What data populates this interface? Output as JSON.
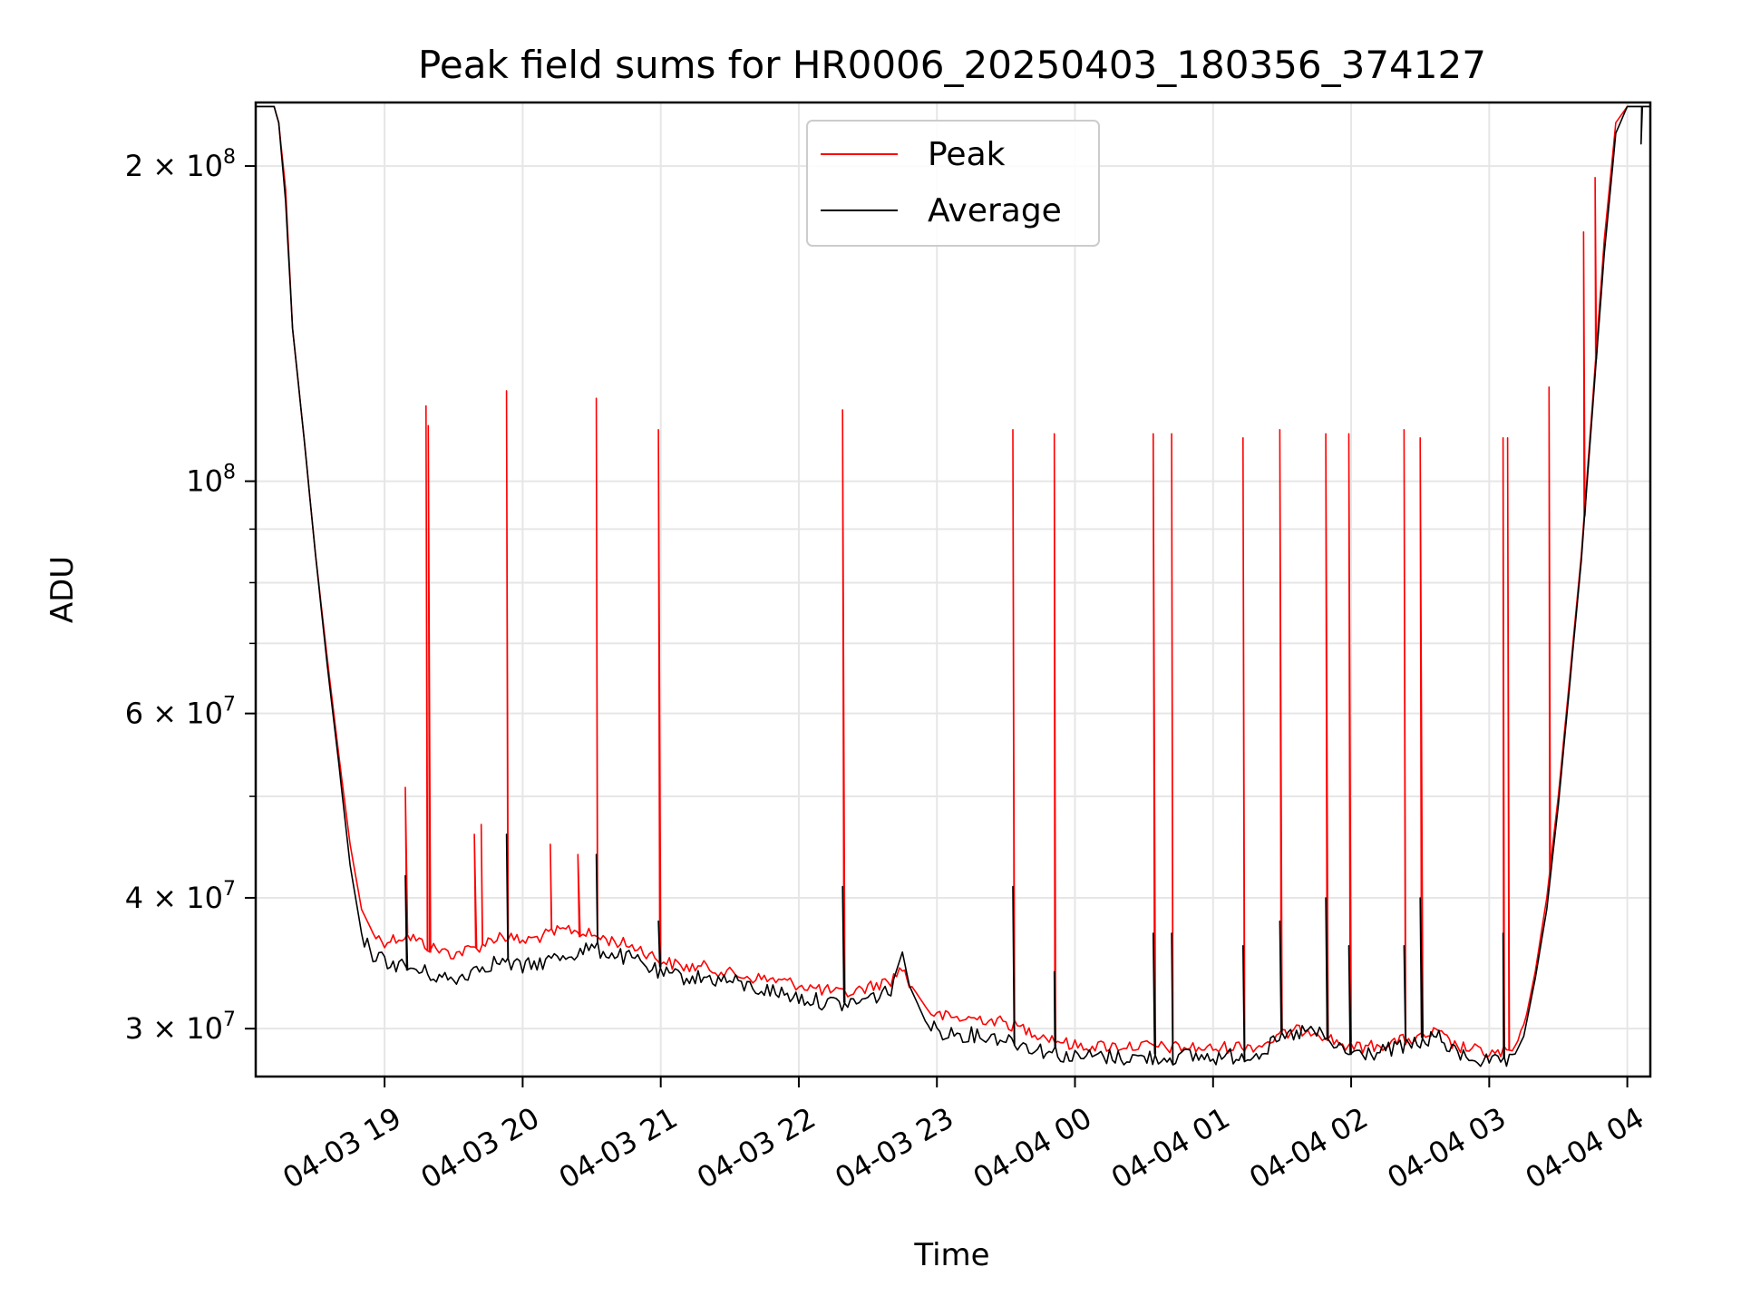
{
  "chart_data": {
    "type": "line",
    "title": "Peak field sums for HR0006_20250403_180356_374127",
    "xlabel": "Time",
    "ylabel": "ADU",
    "yscale": "log",
    "ylim": [
      27000000,
      230000000
    ],
    "xlim": [
      "2025-04-03 18:04",
      "2025-04-04 04:10"
    ],
    "x_ticks": [
      {
        "t": "2025-04-03 19:00",
        "label": "04-03 19"
      },
      {
        "t": "2025-04-03 20:00",
        "label": "04-03 20"
      },
      {
        "t": "2025-04-03 21:00",
        "label": "04-03 21"
      },
      {
        "t": "2025-04-03 22:00",
        "label": "04-03 22"
      },
      {
        "t": "2025-04-03 23:00",
        "label": "04-03 23"
      },
      {
        "t": "2025-04-04 00:00",
        "label": "04-04 00"
      },
      {
        "t": "2025-04-04 01:00",
        "label": "04-04 01"
      },
      {
        "t": "2025-04-04 02:00",
        "label": "04-04 02"
      },
      {
        "t": "2025-04-04 03:00",
        "label": "04-04 03"
      },
      {
        "t": "2025-04-04 04:00",
        "label": "04-04 04"
      }
    ],
    "y_ticks": [
      {
        "v": 30000000,
        "label": "3 × 10⁷",
        "mant": "3",
        "exp": "7"
      },
      {
        "v": 40000000,
        "label": "4 × 10⁷",
        "mant": "4",
        "exp": "7"
      },
      {
        "v": 60000000,
        "label": "6 × 10⁷",
        "mant": "6",
        "exp": "7"
      },
      {
        "v": 100000000,
        "label": "10⁸",
        "mant": "",
        "exp": "8"
      },
      {
        "v": 200000000,
        "label": "2 × 10⁸",
        "mant": "2",
        "exp": "8"
      }
    ],
    "y_minor_ticks": [
      50000000,
      70000000,
      80000000,
      90000000
    ],
    "grid": true,
    "legend_position": "top-center",
    "series": [
      {
        "name": "Peak",
        "color": "#ff0000",
        "points": [
          [
            "2025-04-03 18:04",
            228000000
          ],
          [
            "2025-04-03 18:12",
            228000000
          ],
          [
            "2025-04-03 18:14",
            220000000
          ],
          [
            "2025-04-03 18:17",
            190000000
          ],
          [
            "2025-04-03 18:20",
            140000000
          ],
          [
            "2025-04-03 18:25",
            110000000
          ],
          [
            "2025-04-03 18:30",
            85000000
          ],
          [
            "2025-04-03 18:35",
            68000000
          ],
          [
            "2025-04-03 18:40",
            55000000
          ],
          [
            "2025-04-03 18:45",
            45000000
          ],
          [
            "2025-04-03 18:50",
            39000000
          ],
          [
            "2025-04-03 18:55",
            37000000
          ],
          [
            "2025-04-03 19:00",
            36500000
          ],
          [
            "2025-04-03 19:10",
            37000000
          ],
          [
            "2025-04-03 19:20",
            36000000
          ],
          [
            "2025-04-03 19:30",
            35500000
          ],
          [
            "2025-04-03 19:40",
            36000000
          ],
          [
            "2025-04-03 19:50",
            37000000
          ],
          [
            "2025-04-03 20:00",
            36500000
          ],
          [
            "2025-04-03 20:10",
            37000000
          ],
          [
            "2025-04-03 20:20",
            37500000
          ],
          [
            "2025-04-03 20:30",
            37000000
          ],
          [
            "2025-04-03 20:40",
            36500000
          ],
          [
            "2025-04-03 20:50",
            36000000
          ],
          [
            "2025-04-03 21:00",
            35000000
          ],
          [
            "2025-04-03 21:10",
            34500000
          ],
          [
            "2025-04-03 21:20",
            34500000
          ],
          [
            "2025-04-03 21:30",
            34000000
          ],
          [
            "2025-04-03 21:40",
            33700000
          ],
          [
            "2025-04-03 21:50",
            33500000
          ],
          [
            "2025-04-03 22:00",
            33200000
          ],
          [
            "2025-04-03 22:10",
            32800000
          ],
          [
            "2025-04-03 22:20",
            32500000
          ],
          [
            "2025-04-03 22:30",
            33000000
          ],
          [
            "2025-04-03 22:40",
            33500000
          ],
          [
            "2025-04-03 22:45",
            34500000
          ],
          [
            "2025-04-03 22:48",
            33200000
          ],
          [
            "2025-04-03 22:55",
            31500000
          ],
          [
            "2025-04-03 23:00",
            31000000
          ],
          [
            "2025-04-03 23:10",
            30800000
          ],
          [
            "2025-04-03 23:20",
            30800000
          ],
          [
            "2025-04-03 23:30",
            30500000
          ],
          [
            "2025-04-03 23:40",
            30000000
          ],
          [
            "2025-04-03 23:50",
            29500000
          ],
          [
            "2025-04-04 00:00",
            29000000
          ],
          [
            "2025-04-04 00:10",
            29000000
          ],
          [
            "2025-04-04 00:20",
            29000000
          ],
          [
            "2025-04-04 00:30",
            29000000
          ],
          [
            "2025-04-04 00:40",
            28900000
          ],
          [
            "2025-04-04 00:50",
            28900000
          ],
          [
            "2025-04-04 01:00",
            28800000
          ],
          [
            "2025-04-04 01:10",
            29000000
          ],
          [
            "2025-04-04 01:20",
            29000000
          ],
          [
            "2025-04-04 01:30",
            29700000
          ],
          [
            "2025-04-04 01:40",
            30100000
          ],
          [
            "2025-04-04 01:45",
            30000000
          ],
          [
            "2025-04-04 01:50",
            29500000
          ],
          [
            "2025-04-04 02:00",
            28900000
          ],
          [
            "2025-04-04 02:10",
            29000000
          ],
          [
            "2025-04-04 02:20",
            29300000
          ],
          [
            "2025-04-04 02:30",
            29500000
          ],
          [
            "2025-04-04 02:37",
            29900000
          ],
          [
            "2025-04-04 02:45",
            29000000
          ],
          [
            "2025-04-04 02:55",
            28700000
          ],
          [
            "2025-04-04 03:00",
            28500000
          ],
          [
            "2025-04-04 03:10",
            28600000
          ],
          [
            "2025-04-04 03:15",
            30000000
          ],
          [
            "2025-04-04 03:20",
            34000000
          ],
          [
            "2025-04-04 03:25",
            40000000
          ],
          [
            "2025-04-04 03:30",
            50000000
          ],
          [
            "2025-04-04 03:35",
            65000000
          ],
          [
            "2025-04-04 03:40",
            85000000
          ],
          [
            "2025-04-04 03:45",
            120000000
          ],
          [
            "2025-04-04 03:50",
            170000000
          ],
          [
            "2025-04-04 03:55",
            220000000
          ],
          [
            "2025-04-04 04:00",
            228000000
          ],
          [
            "2025-04-04 04:10",
            228000000
          ]
        ],
        "spikes": [
          [
            "2025-04-03 18:20",
            190000000
          ],
          [
            "2025-04-03 18:55",
            115000000
          ],
          [
            "2025-04-03 19:09",
            51000000
          ],
          [
            "2025-04-03 19:18",
            118000000
          ],
          [
            "2025-04-03 19:19",
            113000000
          ],
          [
            "2025-04-03 19:20",
            118000000
          ],
          [
            "2025-04-03 19:39",
            46000000
          ],
          [
            "2025-04-03 19:42",
            47000000
          ],
          [
            "2025-04-03 19:53",
            122000000
          ],
          [
            "2025-04-03 20:12",
            45000000
          ],
          [
            "2025-04-03 20:24",
            44000000
          ],
          [
            "2025-04-03 20:32",
            120000000
          ],
          [
            "2025-04-03 20:59",
            112000000
          ],
          [
            "2025-04-03 21:10",
            118000000
          ],
          [
            "2025-04-03 22:19",
            117000000
          ],
          [
            "2025-04-03 23:33",
            112000000
          ],
          [
            "2025-04-03 23:51",
            111000000
          ],
          [
            "2025-04-04 00:34",
            111000000
          ],
          [
            "2025-04-04 00:42",
            111000000
          ],
          [
            "2025-04-04 01:13",
            110000000
          ],
          [
            "2025-04-04 01:29",
            112000000
          ],
          [
            "2025-04-04 01:49",
            111000000
          ],
          [
            "2025-04-04 01:59",
            111000000
          ],
          [
            "2025-04-04 02:23",
            112000000
          ],
          [
            "2025-04-04 02:30",
            110000000
          ],
          [
            "2025-04-04 03:06",
            110000000
          ],
          [
            "2025-04-04 03:08",
            110000000
          ],
          [
            "2025-04-04 03:26",
            123000000
          ],
          [
            "2025-04-04 03:30",
            132000000
          ],
          [
            "2025-04-04 03:41",
            173000000
          ],
          [
            "2025-04-04 03:46",
            195000000
          ]
        ]
      },
      {
        "name": "Average",
        "color": "#000000",
        "points": [
          [
            "2025-04-03 18:04",
            228000000
          ],
          [
            "2025-04-03 18:12",
            228000000
          ],
          [
            "2025-04-03 18:14",
            220000000
          ],
          [
            "2025-04-03 18:17",
            185000000
          ],
          [
            "2025-04-03 18:20",
            140000000
          ],
          [
            "2025-04-03 18:25",
            110000000
          ],
          [
            "2025-04-03 18:30",
            85000000
          ],
          [
            "2025-04-03 18:35",
            67000000
          ],
          [
            "2025-04-03 18:40",
            54000000
          ],
          [
            "2025-04-03 18:45",
            43000000
          ],
          [
            "2025-04-03 18:50",
            37000000
          ],
          [
            "2025-04-03 18:55",
            35500000
          ],
          [
            "2025-04-03 19:00",
            35000000
          ],
          [
            "2025-04-03 19:10",
            34500000
          ],
          [
            "2025-04-03 19:20",
            34000000
          ],
          [
            "2025-04-03 19:30",
            33500000
          ],
          [
            "2025-04-03 19:40",
            34500000
          ],
          [
            "2025-04-03 19:50",
            35000000
          ],
          [
            "2025-04-03 20:00",
            34500000
          ],
          [
            "2025-04-03 20:10",
            35000000
          ],
          [
            "2025-04-03 20:20",
            35500000
          ],
          [
            "2025-04-03 20:30",
            36000000
          ],
          [
            "2025-04-03 20:40",
            35500000
          ],
          [
            "2025-04-03 20:50",
            35000000
          ],
          [
            "2025-04-03 21:00",
            34000000
          ],
          [
            "2025-04-03 21:10",
            33800000
          ],
          [
            "2025-04-03 21:20",
            33700000
          ],
          [
            "2025-04-03 21:30",
            33500000
          ],
          [
            "2025-04-03 21:40",
            33000000
          ],
          [
            "2025-04-03 21:50",
            32700000
          ],
          [
            "2025-04-03 22:00",
            32300000
          ],
          [
            "2025-04-03 22:10",
            32000000
          ],
          [
            "2025-04-03 22:20",
            31800000
          ],
          [
            "2025-04-03 22:30",
            32200000
          ],
          [
            "2025-04-03 22:40",
            32800000
          ],
          [
            "2025-04-03 22:45",
            35500000
          ],
          [
            "2025-04-03 22:48",
            33000000
          ],
          [
            "2025-04-03 22:55",
            30500000
          ],
          [
            "2025-04-03 23:00",
            30000000
          ],
          [
            "2025-04-03 23:10",
            29800000
          ],
          [
            "2025-04-03 23:20",
            29700000
          ],
          [
            "2025-04-03 23:30",
            29500000
          ],
          [
            "2025-04-03 23:40",
            29000000
          ],
          [
            "2025-04-03 23:50",
            28600000
          ],
          [
            "2025-04-04 00:00",
            28300000
          ],
          [
            "2025-04-04 00:10",
            28400000
          ],
          [
            "2025-04-04 00:20",
            28300000
          ],
          [
            "2025-04-04 00:30",
            28300000
          ],
          [
            "2025-04-04 00:40",
            28300000
          ],
          [
            "2025-04-04 00:50",
            28400000
          ],
          [
            "2025-04-04 01:00",
            28300000
          ],
          [
            "2025-04-04 01:10",
            28400000
          ],
          [
            "2025-04-04 01:20",
            28600000
          ],
          [
            "2025-04-04 01:30",
            29500000
          ],
          [
            "2025-04-04 01:40",
            30000000
          ],
          [
            "2025-04-04 01:45",
            29900000
          ],
          [
            "2025-04-04 01:50",
            29300000
          ],
          [
            "2025-04-04 02:00",
            28500000
          ],
          [
            "2025-04-04 02:10",
            28600000
          ],
          [
            "2025-04-04 02:20",
            28900000
          ],
          [
            "2025-04-04 02:30",
            29200000
          ],
          [
            "2025-04-04 02:37",
            29700000
          ],
          [
            "2025-04-04 02:45",
            28600000
          ],
          [
            "2025-04-04 02:55",
            28200000
          ],
          [
            "2025-04-04 03:00",
            28000000
          ],
          [
            "2025-04-04 03:10",
            28000000
          ],
          [
            "2025-04-04 03:15",
            29500000
          ],
          [
            "2025-04-04 03:20",
            33500000
          ],
          [
            "2025-04-04 03:25",
            39000000
          ],
          [
            "2025-04-04 03:30",
            49000000
          ],
          [
            "2025-04-04 03:35",
            64000000
          ],
          [
            "2025-04-04 03:40",
            84000000
          ],
          [
            "2025-04-04 03:45",
            118000000
          ],
          [
            "2025-04-04 03:50",
            165000000
          ],
          [
            "2025-04-04 03:55",
            215000000
          ],
          [
            "2025-04-04 04:00",
            228000000
          ],
          [
            "2025-04-04 04:10",
            228000000
          ]
        ],
        "spikes": [
          [
            "2025-04-03 18:55",
            44000000
          ],
          [
            "2025-04-03 19:09",
            42000000
          ],
          [
            "2025-04-03 19:20",
            45000000
          ],
          [
            "2025-04-03 19:53",
            46000000
          ],
          [
            "2025-04-03 20:32",
            44000000
          ],
          [
            "2025-04-03 20:59",
            38000000
          ],
          [
            "2025-04-03 21:10",
            44000000
          ],
          [
            "2025-04-03 22:19",
            41000000
          ],
          [
            "2025-04-03 23:33",
            41000000
          ],
          [
            "2025-04-03 23:51",
            34000000
          ],
          [
            "2025-04-04 00:34",
            37000000
          ],
          [
            "2025-04-04 00:42",
            37000000
          ],
          [
            "2025-04-04 01:13",
            36000000
          ],
          [
            "2025-04-04 01:29",
            38000000
          ],
          [
            "2025-04-04 01:49",
            40000000
          ],
          [
            "2025-04-04 01:59",
            36000000
          ],
          [
            "2025-04-04 02:23",
            36000000
          ],
          [
            "2025-04-04 02:30",
            40000000
          ],
          [
            "2025-04-04 03:06",
            37000000
          ],
          [
            "2025-04-04 04:06",
            210000000
          ]
        ]
      }
    ]
  }
}
